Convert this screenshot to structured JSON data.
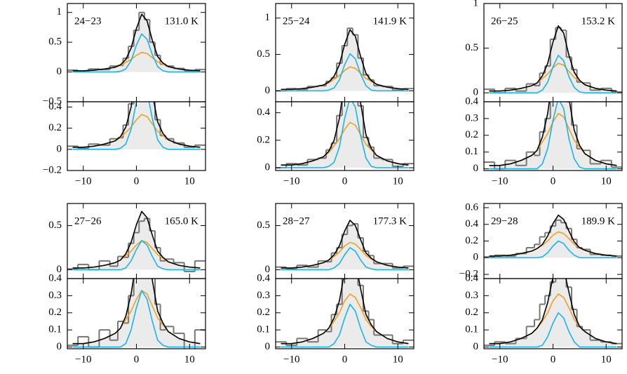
{
  "chart_data": [
    {
      "type": "line",
      "title": "24−23",
      "annotation": "131.0 K",
      "x": [
        -12,
        -10,
        -8,
        -6,
        -4,
        -3,
        -2,
        -1,
        0,
        1,
        2,
        3,
        4,
        5,
        6,
        8,
        10,
        12
      ],
      "xlim": [
        -13,
        13
      ],
      "xticks": [
        {
          "value": -10,
          "label": "−10"
        },
        0,
        10
      ],
      "ylim": [
        -0.5,
        1.15
      ],
      "yticks": [
        {
          "value": -0.5,
          "label": "−0.5"
        },
        0,
        0.5,
        1
      ],
      "lower_panel": {
        "ylim": [
          -0.2,
          0.45
        ],
        "yticks": [
          {
            "value": -0.2,
            "label": "−0.2"
          },
          0,
          0.2,
          0.4
        ]
      },
      "series": [
        {
          "color": "#777777",
          "style": "step",
          "values": [
            0.03,
            0.01,
            0.05,
            0.04,
            0.1,
            0.11,
            0.23,
            0.43,
            0.7,
            1.0,
            0.88,
            0.5,
            0.28,
            0.13,
            0.1,
            0.06,
            0.02,
            0.04
          ]
        },
        {
          "color": "#f0a020",
          "values": [
            0.02,
            0.02,
            0.03,
            0.05,
            0.08,
            0.11,
            0.16,
            0.21,
            0.28,
            0.33,
            0.31,
            0.24,
            0.17,
            0.13,
            0.09,
            0.05,
            0.03,
            0.02
          ]
        },
        {
          "color": "#18b4ec",
          "values": [
            0,
            0,
            0,
            0,
            0,
            0.01,
            0.05,
            0.19,
            0.45,
            0.64,
            0.55,
            0.29,
            0.09,
            0.02,
            0,
            0,
            0,
            0
          ]
        },
        {
          "color": "#000000",
          "fill": "#ebebeb",
          "values": [
            0.02,
            0.02,
            0.03,
            0.05,
            0.08,
            0.12,
            0.21,
            0.4,
            0.73,
            0.97,
            0.86,
            0.53,
            0.26,
            0.15,
            0.09,
            0.05,
            0.03,
            0.02
          ]
        }
      ]
    },
    {
      "type": "line",
      "title": "25−24",
      "annotation": "141.9 K",
      "x": [
        -12,
        -10,
        -8,
        -6,
        -4,
        -3,
        -2,
        -1,
        0,
        1,
        2,
        3,
        4,
        5,
        6,
        8,
        10,
        12
      ],
      "xlim": [
        -13,
        13
      ],
      "xticks": [
        {
          "value": -10,
          "label": "−10"
        },
        0,
        10
      ],
      "ylim": [
        -0.15,
        1.2
      ],
      "yticks": [
        0,
        0.5,
        1
      ],
      "lower_panel": {
        "ylim": [
          -0.02,
          0.48
        ],
        "yticks": [
          0,
          0.2,
          0.4
        ]
      },
      "series": [
        {
          "color": "#777777",
          "style": "step",
          "values": [
            0,
            0.03,
            0.02,
            0.06,
            0.07,
            0.13,
            0.18,
            0.38,
            0.62,
            0.86,
            0.77,
            0.45,
            0.22,
            0.15,
            0.07,
            0.06,
            0.01,
            0.03
          ]
        },
        {
          "color": "#f0a020",
          "values": [
            0.02,
            0.02,
            0.03,
            0.05,
            0.08,
            0.11,
            0.16,
            0.21,
            0.28,
            0.33,
            0.31,
            0.24,
            0.17,
            0.13,
            0.09,
            0.05,
            0.03,
            0.02
          ]
        },
        {
          "color": "#18b4ec",
          "values": [
            0,
            0,
            0,
            0,
            0,
            0.01,
            0.04,
            0.15,
            0.36,
            0.51,
            0.44,
            0.23,
            0.07,
            0.01,
            0,
            0,
            0,
            0
          ]
        },
        {
          "color": "#000000",
          "fill": "#ebebeb",
          "values": [
            0.02,
            0.02,
            0.03,
            0.05,
            0.08,
            0.12,
            0.2,
            0.36,
            0.64,
            0.84,
            0.75,
            0.47,
            0.24,
            0.14,
            0.09,
            0.05,
            0.03,
            0.02
          ]
        }
      ]
    },
    {
      "type": "line",
      "title": "26−25",
      "annotation": "153.2 K",
      "x": [
        -12,
        -10,
        -8,
        -6,
        -4,
        -3,
        -2,
        -1,
        0,
        1,
        2,
        3,
        4,
        5,
        6,
        8,
        10,
        12
      ],
      "xlim": [
        -13,
        13
      ],
      "xticks": [
        {
          "value": -10,
          "label": "−10"
        },
        0,
        10
      ],
      "ylim": [
        -0.1,
        1.0
      ],
      "yticks": [
        0,
        0.5,
        1
      ],
      "lower_panel": {
        "ylim": [
          -0.01,
          0.4
        ],
        "yticks": [
          0,
          0.1,
          0.2,
          0.3,
          0.4
        ]
      },
      "series": [
        {
          "color": "#777777",
          "style": "step",
          "values": [
            0.04,
            0,
            0.05,
            0.02,
            0.1,
            0.08,
            0.22,
            0.3,
            0.6,
            0.73,
            0.7,
            0.4,
            0.26,
            0.12,
            0.11,
            0.03,
            0.05,
            0.01
          ]
        },
        {
          "color": "#f0a020",
          "values": [
            0.02,
            0.02,
            0.03,
            0.05,
            0.08,
            0.11,
            0.16,
            0.21,
            0.28,
            0.33,
            0.31,
            0.24,
            0.17,
            0.13,
            0.09,
            0.05,
            0.03,
            0.02
          ]
        },
        {
          "color": "#18b4ec",
          "values": [
            0,
            0,
            0,
            0,
            0,
            0,
            0.03,
            0.12,
            0.29,
            0.42,
            0.36,
            0.18,
            0.06,
            0.01,
            0,
            0,
            0,
            0
          ]
        },
        {
          "color": "#000000",
          "fill": "#ebebeb",
          "values": [
            0.02,
            0.02,
            0.03,
            0.05,
            0.08,
            0.11,
            0.19,
            0.33,
            0.57,
            0.75,
            0.67,
            0.42,
            0.23,
            0.14,
            0.09,
            0.05,
            0.03,
            0.02
          ]
        }
      ]
    },
    {
      "type": "line",
      "title": "27−26",
      "annotation": "165.0 K",
      "x": [
        -12,
        -10,
        -8,
        -6,
        -4,
        -3,
        -2,
        -1,
        0,
        1,
        2,
        3,
        4,
        5,
        6,
        8,
        10,
        12
      ],
      "xlim": [
        -13,
        13
      ],
      "xticks": [
        {
          "value": -10,
          "label": "−10"
        },
        0,
        10
      ],
      "ylim": [
        -0.1,
        0.75
      ],
      "yticks": [
        0,
        0.5
      ],
      "lower_panel": {
        "ylim": [
          -0.01,
          0.4
        ],
        "yticks": [
          0,
          0.1,
          0.2,
          0.3,
          0.4
        ]
      },
      "series": [
        {
          "color": "#777777",
          "style": "step",
          "values": [
            0.01,
            0.06,
            0,
            0.1,
            0.04,
            0.15,
            0.14,
            0.3,
            0.42,
            0.55,
            0.58,
            0.44,
            0.25,
            0.1,
            0.12,
            0.08,
            -0.02,
            0.1
          ]
        },
        {
          "color": "#f0a020",
          "values": [
            0.02,
            0.02,
            0.03,
            0.05,
            0.08,
            0.11,
            0.16,
            0.21,
            0.28,
            0.33,
            0.31,
            0.24,
            0.17,
            0.13,
            0.09,
            0.05,
            0.03,
            0.02
          ]
        },
        {
          "color": "#18b4ec",
          "values": [
            0,
            0,
            0,
            0,
            0,
            0,
            0.02,
            0.1,
            0.23,
            0.33,
            0.28,
            0.15,
            0.04,
            0.01,
            0,
            0,
            0,
            0
          ]
        },
        {
          "color": "#000000",
          "fill": "#ebebeb",
          "values": [
            0.02,
            0.02,
            0.03,
            0.05,
            0.08,
            0.11,
            0.18,
            0.31,
            0.51,
            0.66,
            0.59,
            0.39,
            0.21,
            0.14,
            0.09,
            0.05,
            0.03,
            0.02
          ]
        }
      ]
    },
    {
      "type": "line",
      "title": "28−27",
      "annotation": "177.3 K",
      "x": [
        -12,
        -10,
        -8,
        -6,
        -4,
        -3,
        -2,
        -1,
        0,
        1,
        2,
        3,
        4,
        5,
        6,
        8,
        10,
        12
      ],
      "xlim": [
        -13,
        13
      ],
      "xticks": [
        {
          "value": -10,
          "label": "−10"
        },
        0,
        10
      ],
      "ylim": [
        -0.1,
        0.75
      ],
      "yticks": [
        0,
        0.5
      ],
      "lower_panel": {
        "ylim": [
          -0.01,
          0.4
        ],
        "yticks": [
          0,
          0.1,
          0.2,
          0.3,
          0.4
        ]
      },
      "series": [
        {
          "color": "#777777",
          "style": "step",
          "values": [
            0.03,
            0.01,
            0.05,
            0.03,
            0.1,
            0.09,
            0.19,
            0.25,
            0.4,
            0.5,
            0.52,
            0.36,
            0.21,
            0.16,
            0.07,
            0.07,
            0.02,
            0.04
          ]
        },
        {
          "color": "#f0a020",
          "values": [
            0.02,
            0.02,
            0.03,
            0.05,
            0.08,
            0.11,
            0.15,
            0.2,
            0.27,
            0.31,
            0.29,
            0.23,
            0.16,
            0.12,
            0.09,
            0.05,
            0.03,
            0.02
          ]
        },
        {
          "color": "#18b4ec",
          "values": [
            0,
            0,
            0,
            0,
            0,
            0,
            0.02,
            0.07,
            0.17,
            0.25,
            0.21,
            0.11,
            0.03,
            0.01,
            0,
            0,
            0,
            0
          ]
        },
        {
          "color": "#000000",
          "fill": "#ebebeb",
          "values": [
            0.02,
            0.02,
            0.03,
            0.05,
            0.08,
            0.11,
            0.17,
            0.27,
            0.44,
            0.56,
            0.5,
            0.34,
            0.19,
            0.13,
            0.09,
            0.05,
            0.03,
            0.02
          ]
        }
      ]
    },
    {
      "type": "line",
      "title": "29−28",
      "annotation": "189.9 K",
      "x": [
        -12,
        -10,
        -8,
        -6,
        -4,
        -3,
        -2,
        -1,
        0,
        1,
        2,
        3,
        4,
        5,
        6,
        8,
        10,
        12
      ],
      "xlim": [
        -13,
        13
      ],
      "xticks": [
        {
          "value": -10,
          "label": "−10"
        },
        0,
        10
      ],
      "ylim": [
        -0.25,
        0.65
      ],
      "yticks": [
        {
          "value": -0.2,
          "label": "−0.2"
        },
        0,
        0.2,
        0.4,
        0.6
      ],
      "lower_panel": {
        "ylim": [
          -0.01,
          0.4
        ],
        "yticks": [
          0,
          0.1,
          0.2,
          0.3,
          0.4
        ]
      },
      "series": [
        {
          "color": "#777777",
          "style": "step",
          "values": [
            0.01,
            0.03,
            0.02,
            0.05,
            0.12,
            0.16,
            0.25,
            0.3,
            0.38,
            0.45,
            0.42,
            0.35,
            0.22,
            0.12,
            0.1,
            0.04,
            0.03,
            0.02
          ]
        },
        {
          "color": "#f0a020",
          "values": [
            0.02,
            0.02,
            0.03,
            0.05,
            0.08,
            0.11,
            0.15,
            0.2,
            0.27,
            0.31,
            0.29,
            0.23,
            0.16,
            0.12,
            0.09,
            0.05,
            0.03,
            0.02
          ]
        },
        {
          "color": "#18b4ec",
          "values": [
            0,
            0,
            0,
            0,
            0,
            0,
            0.01,
            0.06,
            0.14,
            0.2,
            0.17,
            0.09,
            0.03,
            0,
            0,
            0,
            0,
            0
          ]
        },
        {
          "color": "#000000",
          "fill": "#ebebeb",
          "values": [
            0.02,
            0.02,
            0.03,
            0.05,
            0.08,
            0.11,
            0.16,
            0.26,
            0.41,
            0.51,
            0.46,
            0.32,
            0.19,
            0.12,
            0.09,
            0.05,
            0.03,
            0.02
          ]
        }
      ]
    }
  ]
}
